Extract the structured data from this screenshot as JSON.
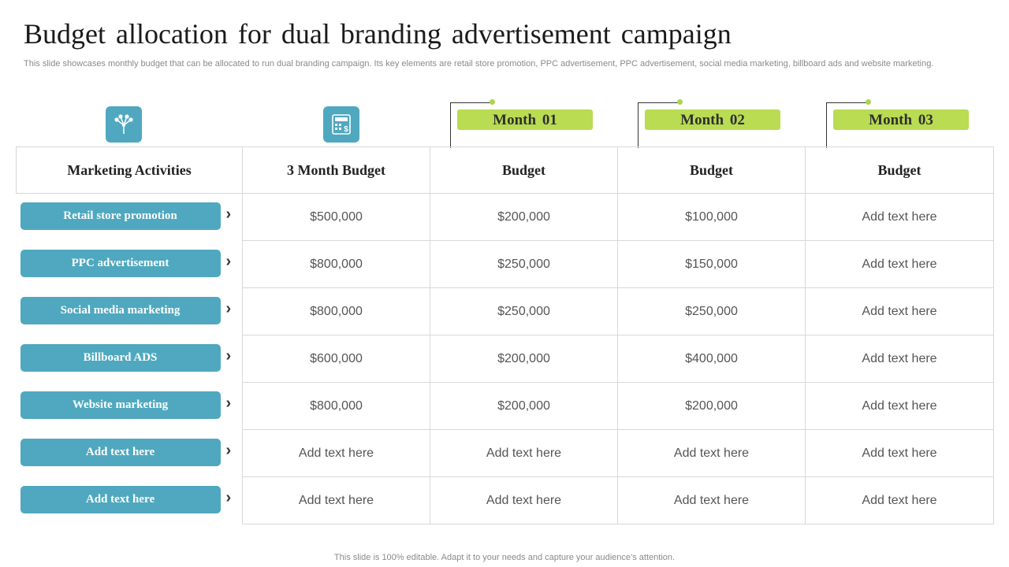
{
  "title": "Budget allocation for dual branding advertisement campaign",
  "subtitle": "This slide showcases monthly budget that can be allocated to run dual branding campaign. Its key elements are retail store promotion, PPC advertisement, PPC advertisement, social media marketing, billboard ads and website marketing.",
  "icons": {
    "activities_icon": "network-icon",
    "budget_icon": "calculator-icon"
  },
  "months": [
    "Month  01",
    "Month  02",
    "Month  03"
  ],
  "headers": [
    "Marketing Activities",
    "3 Month Budget",
    "Budget",
    "Budget",
    "Budget"
  ],
  "rows": [
    {
      "activity": "Retail store promotion",
      "total": "$500,000",
      "m1": "$200,000",
      "m2": "$100,000",
      "m3": "Add text here"
    },
    {
      "activity": "PPC advertisement",
      "total": "$800,000",
      "m1": "$250,000",
      "m2": "$150,000",
      "m3": "Add text here"
    },
    {
      "activity": "Social media marketing",
      "total": "$800,000",
      "m1": "$250,000",
      "m2": "$250,000",
      "m3": "Add text here"
    },
    {
      "activity": "Billboard ADS",
      "total": "$600,000",
      "m1": "$200,000",
      "m2": "$400,000",
      "m3": "Add text here"
    },
    {
      "activity": "Website marketing",
      "total": "$800,000",
      "m1": "$200,000",
      "m2": "$200,000",
      "m3": "Add text here"
    },
    {
      "activity": "Add text here",
      "total": "Add text here",
      "m1": "Add text here",
      "m2": "Add text here",
      "m3": "Add text here"
    },
    {
      "activity": "Add text here",
      "total": "Add text here",
      "m1": "Add text here",
      "m2": "Add text here",
      "m3": "Add text here"
    }
  ],
  "chevron": "›",
  "footer": "This slide is 100% editable. Adapt it to your needs and capture your audience’s attention.",
  "colors": {
    "accent_blue": "#4fa8bf",
    "accent_green": "#b9dc52",
    "border": "#d8d8d8"
  }
}
